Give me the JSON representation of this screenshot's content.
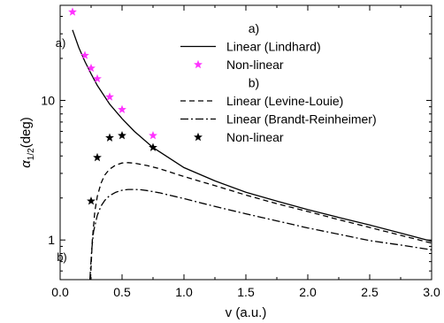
{
  "chart_data": {
    "type": "line",
    "xlabel": "v (a.u.)",
    "ylabel_main": "α",
    "ylabel_sub": "1/2",
    "ylabel_unit": "(deg)",
    "xlim": [
      0.0,
      3.0
    ],
    "ylim": [
      0.52,
      48
    ],
    "yscale": "log",
    "grid": false,
    "legend_placement": "top-right",
    "x_ticks": [
      0.0,
      0.5,
      1.0,
      1.5,
      2.0,
      2.5,
      3.0
    ],
    "x_tick_labels": [
      "0.0",
      "0.5",
      "1.0",
      "1.5",
      "2.0",
      "2.5",
      "3.0"
    ],
    "y_ticks": [
      1,
      10
    ],
    "y_tick_labels": [
      "1",
      "10"
    ],
    "legend": {
      "group_a_label": "a)",
      "group_b_label": "b)"
    },
    "annotations": [
      {
        "text": "a)",
        "x": 0.12,
        "y": 26
      },
      {
        "text": "b)",
        "x": 0.13,
        "y": 0.76
      }
    ],
    "series": [
      {
        "name": "Linear (Lindhard)",
        "group": "a",
        "style": "solid",
        "color": "#000000",
        "x": [
          0.1,
          0.15,
          0.2,
          0.25,
          0.3,
          0.4,
          0.5,
          0.6,
          0.75,
          1.0,
          1.25,
          1.5,
          1.75,
          2.0,
          2.25,
          2.5,
          2.75,
          3.0
        ],
        "y": [
          32,
          24,
          19,
          15.5,
          12.8,
          9.4,
          7.4,
          6.0,
          4.6,
          3.3,
          2.65,
          2.2,
          1.9,
          1.65,
          1.45,
          1.28,
          1.12,
          0.98
        ]
      },
      {
        "name": "Non-linear",
        "group": "a",
        "style": "marker",
        "marker": "star",
        "color": "#ff33ff",
        "x": [
          0.1,
          0.2,
          0.25,
          0.3,
          0.4,
          0.5,
          0.75
        ],
        "y": [
          43,
          21,
          17,
          14.3,
          10.6,
          8.6,
          5.6
        ]
      },
      {
        "name": "Linear (Levine-Louie)",
        "group": "b",
        "style": "dashed",
        "color": "#000000",
        "x": [
          0.245,
          0.26,
          0.28,
          0.3,
          0.33,
          0.36,
          0.4,
          0.45,
          0.5,
          0.55,
          0.6,
          0.7,
          0.8,
          1.0,
          1.25,
          1.5,
          1.75,
          2.0,
          2.25,
          2.5,
          2.75,
          3.0
        ],
        "y": [
          0.52,
          1.0,
          1.6,
          2.05,
          2.55,
          2.92,
          3.22,
          3.45,
          3.56,
          3.58,
          3.55,
          3.42,
          3.25,
          2.85,
          2.45,
          2.1,
          1.82,
          1.6,
          1.4,
          1.23,
          1.08,
          0.95
        ]
      },
      {
        "name": "Linear (Brandt-Reinheimer)",
        "group": "b",
        "style": "dashdot",
        "color": "#000000",
        "x": [
          0.24,
          0.255,
          0.27,
          0.3,
          0.33,
          0.36,
          0.4,
          0.45,
          0.5,
          0.55,
          0.6,
          0.65,
          0.7,
          0.8,
          1.0,
          1.25,
          1.5,
          1.75,
          2.0,
          2.25,
          2.5,
          2.75,
          3.0
        ],
        "y": [
          0.52,
          0.85,
          1.15,
          1.5,
          1.75,
          1.92,
          2.08,
          2.2,
          2.27,
          2.3,
          2.3,
          2.29,
          2.26,
          2.18,
          1.98,
          1.74,
          1.54,
          1.37,
          1.22,
          1.1,
          0.99,
          0.92,
          0.85
        ]
      },
      {
        "name": "Non-linear",
        "group": "b",
        "style": "marker",
        "marker": "star",
        "color": "#000000",
        "x": [
          0.25,
          0.3,
          0.4,
          0.5,
          0.75
        ],
        "y": [
          1.9,
          3.9,
          5.4,
          5.6,
          4.6
        ]
      }
    ]
  }
}
